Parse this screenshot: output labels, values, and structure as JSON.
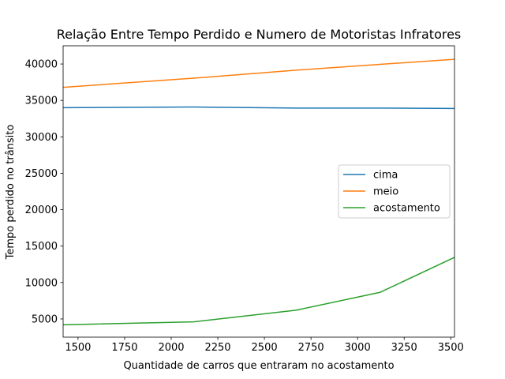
{
  "chart_data": {
    "type": "line",
    "title": "Relação Entre Tempo Perdido e Numero de Motoristas Infratores",
    "xlabel": "Quantidade de carros que entraram no acostamento",
    "ylabel": "Tempo perdido no trânsito",
    "xlim": [
      1420,
      3520
    ],
    "ylim": [
      2500,
      42500
    ],
    "xticks": [
      1500,
      1750,
      2000,
      2250,
      2500,
      2750,
      3000,
      3250,
      3500
    ],
    "yticks": [
      5000,
      10000,
      15000,
      20000,
      25000,
      30000,
      35000,
      40000
    ],
    "legend_position": "center-right",
    "grid": false,
    "x": [
      1420,
      2120,
      2670,
      3120,
      3520
    ],
    "series": [
      {
        "name": "cima",
        "color": "#1f77b4",
        "values": [
          34000,
          34100,
          33950,
          33950,
          33900
        ]
      },
      {
        "name": "meio",
        "color": "#ff7f0e",
        "values": [
          36800,
          38050,
          39150,
          39950,
          40650
        ]
      },
      {
        "name": "acostamento",
        "color": "#2ca02c",
        "values": [
          4200,
          4600,
          6200,
          8650,
          13450
        ]
      }
    ]
  }
}
